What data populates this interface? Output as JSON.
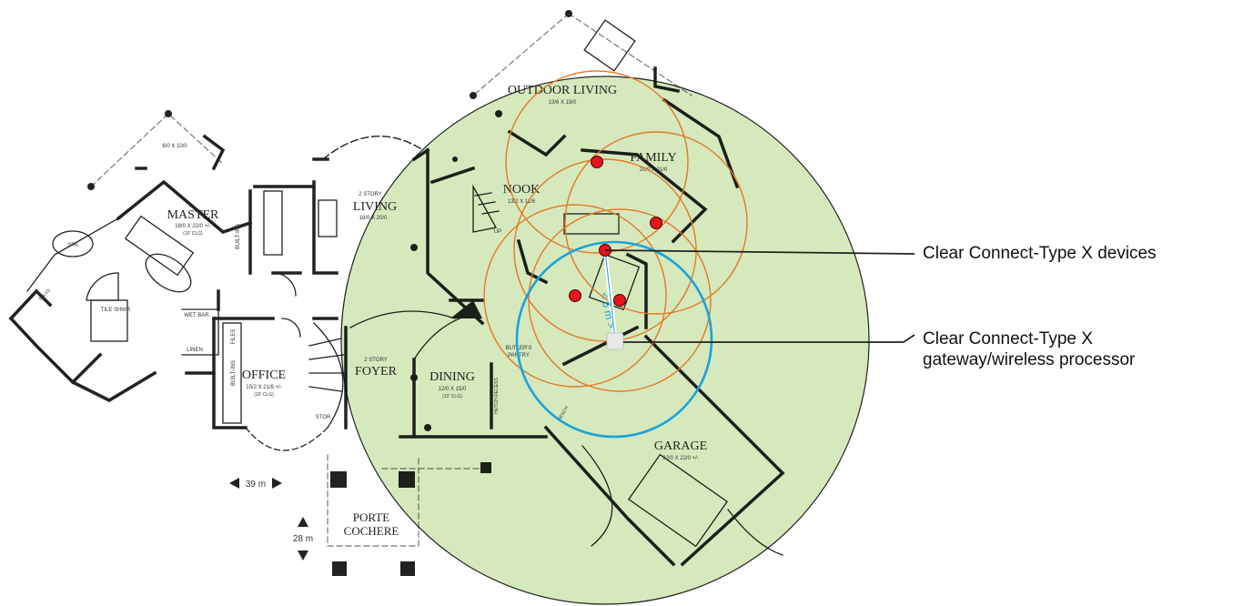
{
  "rooms": {
    "outdoor_living": "OUTDOOR LIVING",
    "outdoor_living_dim": "13/6 X 19/0",
    "family": "FAMILY",
    "family_dim": "20/0 X 21/0",
    "nook": "NOOK",
    "nook_dim": "13/2 X 11/6",
    "master": "MASTER",
    "master_dim": "18/0 X 22/0 +/-",
    "master_clg": "(10' CLG)",
    "master_top_dim": "6/0 X 10/0",
    "living_story": "2 STORY",
    "living": "LIVING",
    "living_dim": "18/0 X 20/0",
    "office": "OFFICE",
    "office_dim": "15/2 X 21/6 +/-",
    "office_clg": "(10' CLG)",
    "foyer_story": "2 STORY",
    "foyer": "FOYER",
    "dining": "DINING",
    "dining_dim": "12/0 X 15/0",
    "dining_clg": "(10' CLG)",
    "garage": "GARAGE",
    "garage_dim": "32/0 X 22/0 +/-",
    "porte": "PORTE",
    "cochere": "COCHERE",
    "tile_shwr": "TILE SHWR",
    "spa": "SPA",
    "linen": "LINEN",
    "built_ins": "BUILT-INS",
    "built_ins_2": "BUILT-INS",
    "files": "FILES",
    "stor": "STOR",
    "butlers": "BUTLER'S",
    "pantry": "PANTRY",
    "hutch_recess": "HUTCH RECESS",
    "wet_bar": "WET BAR",
    "up": "UP",
    "shelves": "SHLVS",
    "bench": "BENCH"
  },
  "scale": {
    "horizontal": "39 m",
    "vertical": "28 m",
    "range": "< 6 m >"
  },
  "callouts": {
    "devices": "Clear Connect-Type X devices",
    "gateway_line1": "Clear Connect-Type X",
    "gateway_line2": "gateway/wireless processor"
  },
  "colors": {
    "coverage_fill": "#d6e9bd",
    "device_dot": "#e8141c",
    "device_ring": "#e07a28",
    "gateway_ring": "#1aa3dc"
  }
}
